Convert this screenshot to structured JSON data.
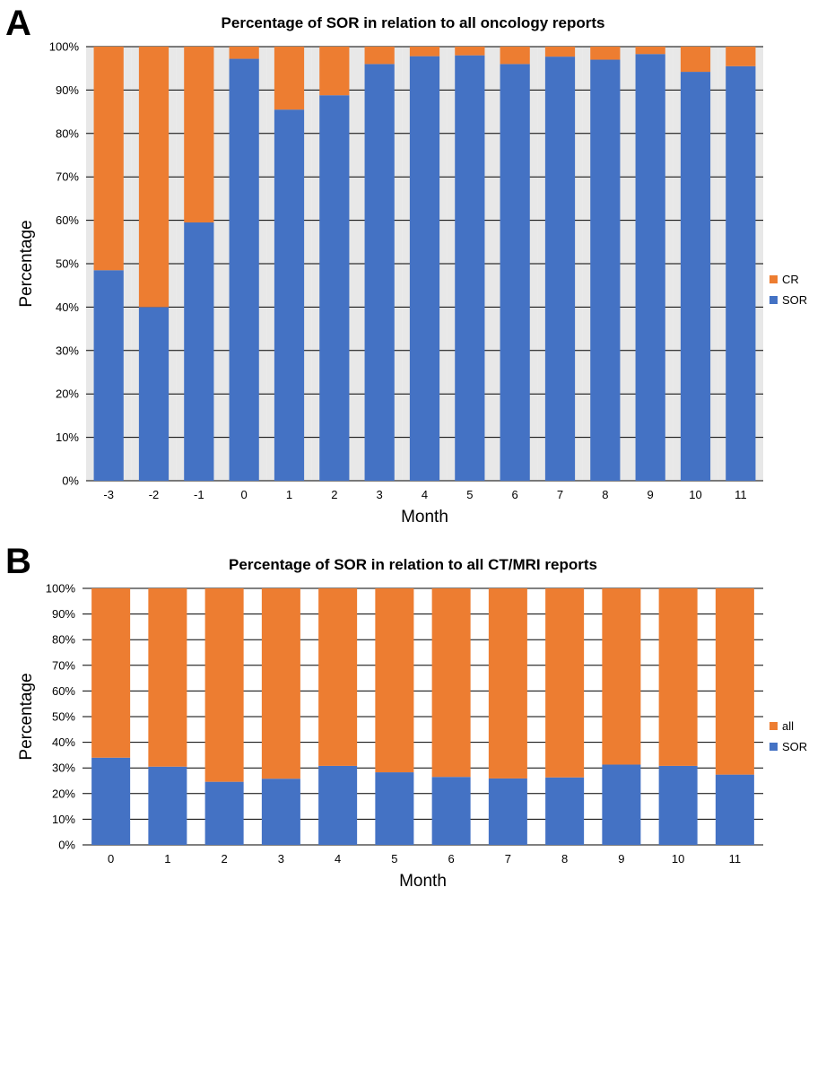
{
  "chart_data": [
    {
      "panel_label": "A",
      "type": "bar",
      "stacked": true,
      "title": "Percentage of SOR in relation to all oncology reports",
      "xlabel": "Month",
      "ylabel": "Percentage",
      "categories": [
        "-3",
        "-2",
        "-1",
        "0",
        "1",
        "2",
        "3",
        "4",
        "5",
        "6",
        "7",
        "8",
        "9",
        "10",
        "11"
      ],
      "series": [
        {
          "name": "SOR",
          "color": "#4472C4",
          "values": [
            48.5,
            40,
            59.5,
            97.2,
            85.5,
            88.8,
            96,
            97.8,
            98,
            96,
            97.7,
            97,
            98.3,
            94.2,
            95.5
          ]
        },
        {
          "name": "CR",
          "color": "#ED7D31",
          "values": [
            51.5,
            60,
            40.5,
            2.8,
            14.5,
            11.2,
            4,
            2.2,
            2,
            4,
            2.3,
            3,
            1.7,
            5.8,
            4.5
          ]
        }
      ],
      "legend": [
        "CR",
        "SOR"
      ],
      "legend_position": "right",
      "ylim": [
        0,
        100
      ],
      "yticks": [
        "0%",
        "10%",
        "20%",
        "30%",
        "40%",
        "50%",
        "60%",
        "70%",
        "80%",
        "90%",
        "100%"
      ],
      "grid": true
    },
    {
      "panel_label": "B",
      "type": "bar",
      "stacked": true,
      "title": "Percentage of SOR in relation to all CT/MRI reports",
      "xlabel": "Month",
      "ylabel": "Percentage",
      "categories": [
        "0",
        "1",
        "2",
        "3",
        "4",
        "5",
        "6",
        "7",
        "8",
        "9",
        "10",
        "11"
      ],
      "series": [
        {
          "name": "SOR",
          "color": "#4472C4",
          "values": [
            34,
            30.5,
            24.6,
            25.8,
            30.8,
            28.3,
            26.5,
            25.9,
            26.3,
            31.3,
            30.8,
            27.4
          ]
        },
        {
          "name": "all",
          "color": "#ED7D31",
          "values": [
            66,
            69.5,
            75.4,
            74.2,
            69.2,
            71.7,
            73.5,
            74.1,
            73.7,
            68.7,
            69.2,
            72.6
          ]
        }
      ],
      "legend": [
        "all",
        "SOR"
      ],
      "legend_position": "right",
      "ylim": [
        0,
        100
      ],
      "yticks": [
        "0%",
        "10%",
        "20%",
        "30%",
        "40%",
        "50%",
        "60%",
        "70%",
        "80%",
        "90%",
        "100%"
      ],
      "grid": true
    }
  ]
}
